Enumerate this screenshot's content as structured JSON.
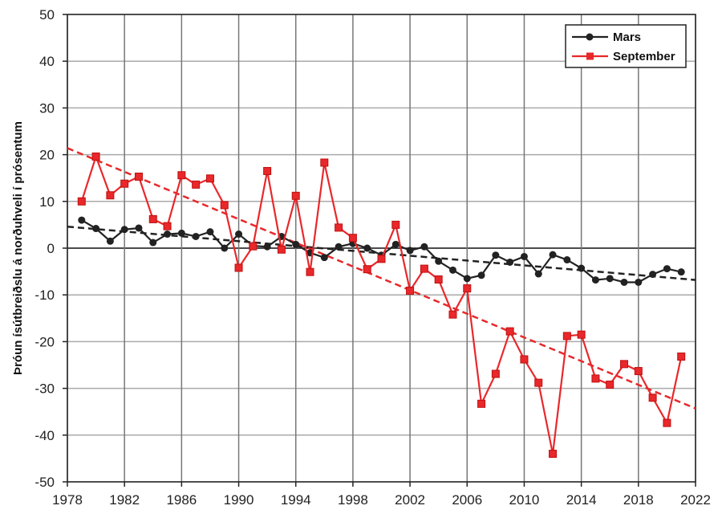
{
  "chart_data": {
    "type": "line",
    "title": "",
    "xlabel": "",
    "ylabel": "Þróun ísútbreiðslu á norðuhveli í prósentum",
    "xlim": [
      1978,
      2022
    ],
    "ylim": [
      -50,
      50
    ],
    "xticks": [
      1978,
      1982,
      1986,
      1990,
      1994,
      1998,
      2002,
      2006,
      2010,
      2014,
      2018,
      2022
    ],
    "yticks": [
      50,
      40,
      30,
      20,
      10,
      0,
      -10,
      -20,
      -30,
      -40,
      -50
    ],
    "grid": true,
    "legend": "top-right",
    "x": [
      1979,
      1980,
      1981,
      1982,
      1983,
      1984,
      1985,
      1986,
      1987,
      1988,
      1989,
      1990,
      1991,
      1992,
      1993,
      1994,
      1995,
      1996,
      1997,
      1998,
      1999,
      2000,
      2001,
      2002,
      2003,
      2004,
      2005,
      2006,
      2007,
      2008,
      2009,
      2010,
      2011,
      2012,
      2013,
      2014,
      2015,
      2016,
      2017,
      2018,
      2019,
      2020,
      2021
    ],
    "series": [
      {
        "name": "Mars",
        "color": "#222222",
        "marker": "circle",
        "values": [
          6,
          4.2,
          1.5,
          4,
          4.3,
          1.2,
          3,
          3.2,
          2.5,
          3.5,
          0,
          3,
          0.5,
          0.3,
          2.5,
          0.8,
          -1,
          -2,
          0.3,
          1,
          0,
          -1.5,
          0.8,
          -0.5,
          0.3,
          -2.8,
          -4.7,
          -6.5,
          -5.8,
          -1.5,
          -3,
          -1.8,
          -5.5,
          -1.4,
          -2.5,
          -4.3,
          -6.8,
          -6.5,
          -7.3,
          -7.3,
          -5.6,
          -4.4,
          -5.1
        ],
        "trend": [
          [
            1978,
            4.6
          ],
          [
            2022,
            -6.8
          ]
        ]
      },
      {
        "name": "September",
        "color": "#e8282b",
        "marker": "square",
        "values": [
          10,
          19.6,
          11.3,
          13.8,
          15.3,
          6.2,
          4.7,
          15.6,
          13.6,
          14.9,
          9.2,
          -4.2,
          0.4,
          16.5,
          -0.3,
          11.2,
          -5.1,
          18.3,
          4.4,
          2.2,
          -4.5,
          -2.3,
          5,
          -9.1,
          -4.4,
          -6.7,
          -14.2,
          -8.6,
          -33.3,
          -26.9,
          -17.8,
          -23.8,
          -28.8,
          -44,
          -18.8,
          -18.5,
          -27.9,
          -29.2,
          -24.8,
          -26.3,
          -32,
          -37.4,
          -23.2
        ],
        "trend": [
          [
            1978,
            21.4
          ],
          [
            2022,
            -34.3
          ]
        ]
      }
    ]
  }
}
